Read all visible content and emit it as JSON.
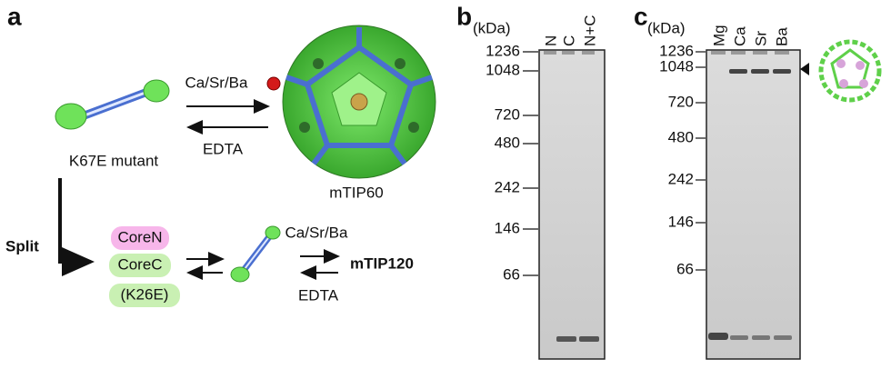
{
  "panel_a": {
    "label": "a",
    "mutant": "K67E mutant",
    "ion_top": "Ca/Sr/Ba",
    "edta_top": "EDTA",
    "cage": "mTIP60",
    "split": "Split",
    "core_n": "CoreN",
    "core_c": "CoreC",
    "core_c_mut": "(K26E)",
    "ion_bottom": "Ca/Sr/Ba",
    "product": "mTIP120",
    "edta_bottom": "EDTA"
  },
  "panel_b": {
    "label": "b",
    "unit": "(kDa)",
    "lanes": [
      "N",
      "C",
      "N+C"
    ],
    "markers": [
      1236,
      1048,
      720,
      480,
      242,
      146,
      66
    ]
  },
  "panel_c": {
    "label": "c",
    "unit": "(kDa)",
    "lanes": [
      "Mg",
      "Ca",
      "Sr",
      "Ba"
    ],
    "markers": [
      1236,
      1048,
      720,
      480,
      242,
      146,
      66
    ]
  }
}
